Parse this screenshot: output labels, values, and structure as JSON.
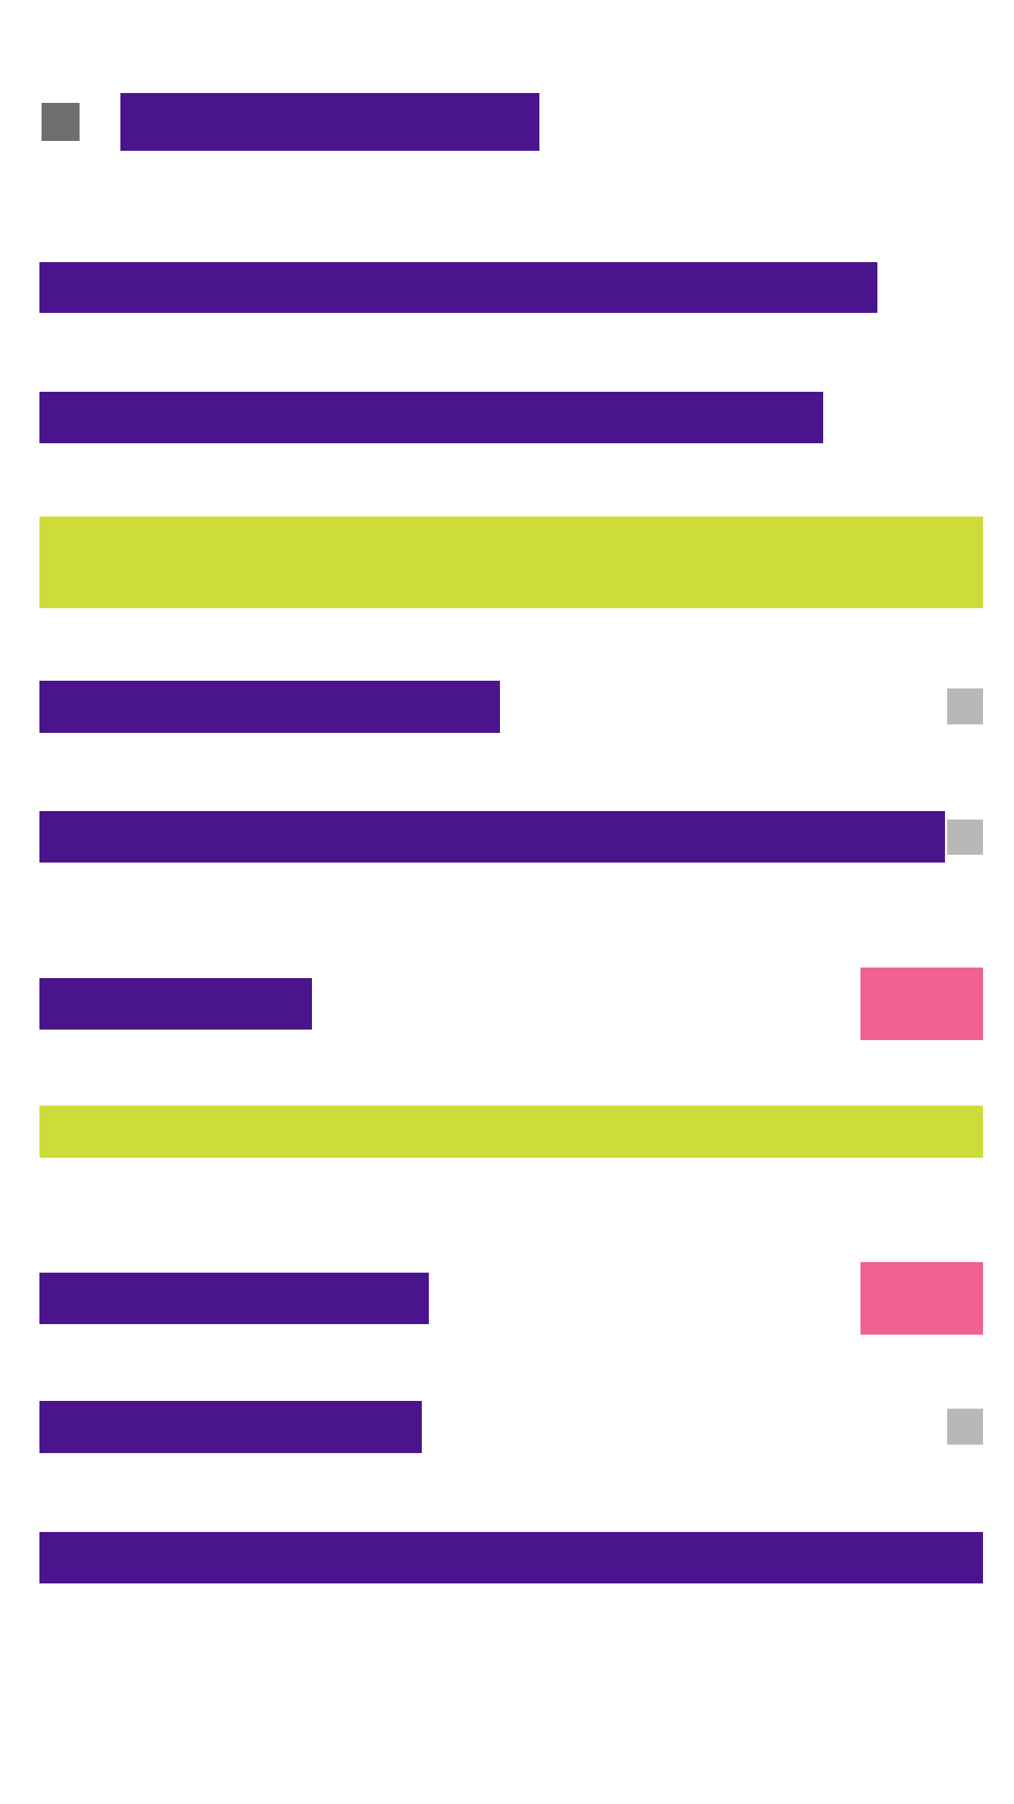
{
  "colors": {
    "background": "#ffffff",
    "primary": "#4a148c",
    "accent": "#cddc39",
    "action": "#f06292",
    "icon_dark": "#6e6e6e",
    "icon_light": "#b8b8b8"
  },
  "header": {
    "nav_icon": "menu-icon",
    "title": ""
  },
  "rows": [
    {
      "label": ""
    },
    {
      "label": ""
    },
    {
      "label": ""
    },
    {
      "label": ""
    },
    {
      "label": ""
    },
    {
      "label": ""
    },
    {
      "label": ""
    },
    {
      "label": ""
    }
  ],
  "accents": [
    {
      "label": ""
    },
    {
      "label": ""
    }
  ],
  "buttons": [
    {
      "label": ""
    },
    {
      "label": ""
    }
  ],
  "icons": {
    "row3": "checkbox-icon",
    "row4": "checkbox-icon",
    "row7": "checkbox-icon"
  }
}
